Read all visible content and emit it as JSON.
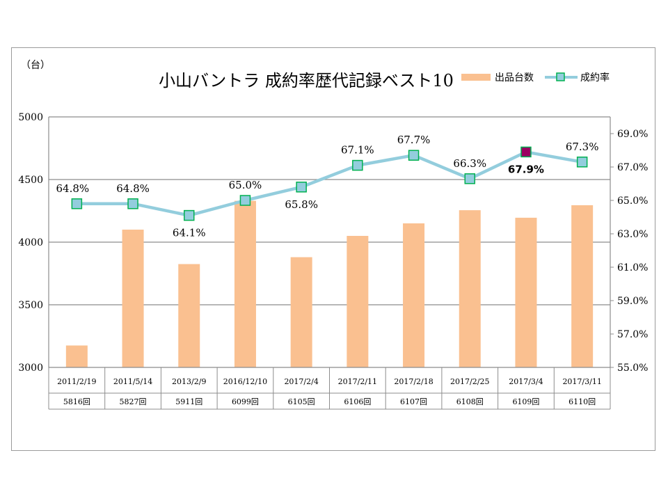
{
  "chart_data": {
    "type": "bar+line",
    "title": "小山バントラ 成約率歴代記録ベスト10",
    "unit_label": "（台）",
    "categories": [
      "2011/2/19",
      "2011/5/14",
      "2013/2/9",
      "2016/12/10",
      "2017/2/4",
      "2017/2/11",
      "2017/2/18",
      "2017/2/25",
      "2017/3/4",
      "2017/3/11"
    ],
    "sessions": [
      "5816回",
      "5827回",
      "5911回",
      "6099回",
      "6105回",
      "6106回",
      "6107回",
      "6108回",
      "6109回",
      "6110回"
    ],
    "series": [
      {
        "name": "出品台数",
        "type": "bar",
        "axis": "left",
        "color": "#FAC090",
        "values": [
          3175,
          4100,
          3825,
          4330,
          3880,
          4050,
          4150,
          4255,
          4195,
          4295
        ]
      },
      {
        "name": "成約率",
        "type": "line",
        "axis": "right",
        "color": "#93CDDD",
        "marker_fill": "#93CDDD",
        "marker_edge": "#00B050",
        "values": [
          64.8,
          64.8,
          64.1,
          65.0,
          65.8,
          67.1,
          67.7,
          66.3,
          67.9,
          67.3
        ],
        "labels": [
          "64.8%",
          "64.8%",
          "64.1%",
          "65.0%",
          "65.8%",
          "67.1%",
          "67.7%",
          "66.3%",
          "67.9%",
          "67.3%"
        ],
        "highlight_index": 8,
        "highlight_color": "#9B0061"
      }
    ],
    "y_left": {
      "min": 3000,
      "max": 5000,
      "ticks": [
        3000,
        3500,
        4000,
        4500,
        5000
      ]
    },
    "y_right": {
      "min": 55.0,
      "max": 70.0,
      "ticks": [
        55.0,
        57.0,
        59.0,
        61.0,
        63.0,
        65.0,
        67.0,
        69.0
      ],
      "tick_labels": [
        "55.0%",
        "57.0%",
        "59.0%",
        "61.0%",
        "63.0%",
        "65.0%",
        "67.0%",
        "69.0%"
      ]
    },
    "grid": "horizontal",
    "legend_position": "top-right"
  }
}
